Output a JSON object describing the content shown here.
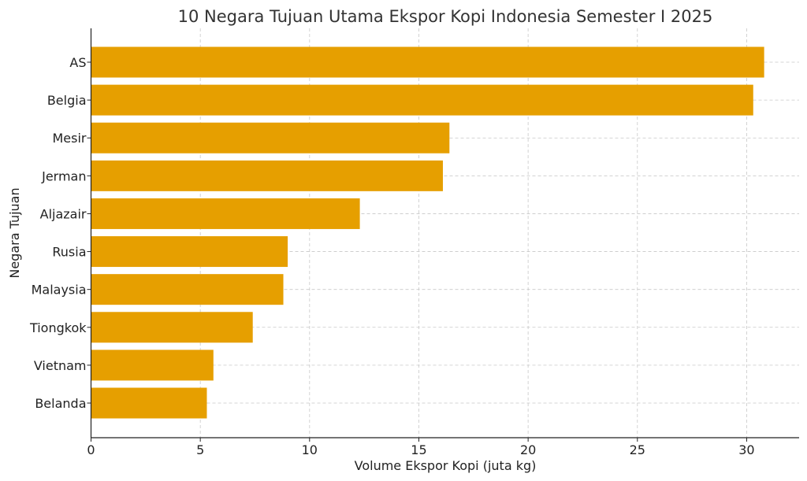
{
  "chart_data": {
    "type": "bar",
    "orientation": "horizontal",
    "title": "10 Negara Tujuan Utama Ekspor Kopi Indonesia Semester I 2025",
    "xlabel": "Volume Ekspor Kopi (juta kg)",
    "ylabel": "Negara Tujuan",
    "categories": [
      "AS",
      "Belgia",
      "Mesir",
      "Jerman",
      "Aljazair",
      "Rusia",
      "Malaysia",
      "Tiongkok",
      "Vietnam",
      "Belanda"
    ],
    "values": [
      30.8,
      30.3,
      16.4,
      16.1,
      12.3,
      9.0,
      8.8,
      7.4,
      5.6,
      5.3
    ],
    "xlim": [
      0,
      32.4
    ],
    "xticks": [
      0,
      5,
      10,
      15,
      20,
      25,
      30
    ],
    "grid": true,
    "bar_color": "#E69F00"
  }
}
